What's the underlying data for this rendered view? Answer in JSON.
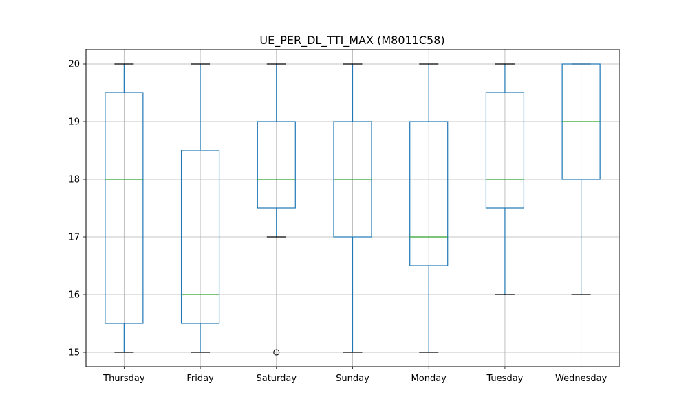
{
  "chart_data": {
    "type": "boxplot",
    "title": "UE_PER_DL_TTI_MAX (M8011C58)",
    "xlabel": "",
    "ylabel": "",
    "categories": [
      "Thursday",
      "Friday",
      "Saturday",
      "Sunday",
      "Monday",
      "Tuesday",
      "Wednesday"
    ],
    "boxes": [
      {
        "category": "Thursday",
        "whisker_low": 15,
        "q1": 15.5,
        "median": 18,
        "q3": 19.5,
        "whisker_high": 20,
        "outliers": []
      },
      {
        "category": "Friday",
        "whisker_low": 15,
        "q1": 15.5,
        "median": 16,
        "q3": 18.5,
        "whisker_high": 20,
        "outliers": []
      },
      {
        "category": "Saturday",
        "whisker_low": 17,
        "q1": 17.5,
        "median": 18,
        "q3": 19,
        "whisker_high": 20,
        "outliers": [
          15
        ]
      },
      {
        "category": "Sunday",
        "whisker_low": 15,
        "q1": 17,
        "median": 18,
        "q3": 19,
        "whisker_high": 20,
        "outliers": []
      },
      {
        "category": "Monday",
        "whisker_low": 15,
        "q1": 16.5,
        "median": 17,
        "q3": 19,
        "whisker_high": 20,
        "outliers": []
      },
      {
        "category": "Tuesday",
        "whisker_low": 16,
        "q1": 17.5,
        "median": 18,
        "q3": 19.5,
        "whisker_high": 20,
        "outliers": []
      },
      {
        "category": "Wednesday",
        "whisker_low": 16,
        "q1": 18,
        "median": 19,
        "q3": 20,
        "whisker_high": 20,
        "outliers": []
      }
    ],
    "yticks": [
      15,
      16,
      17,
      18,
      19,
      20
    ],
    "ylim": [
      14.75,
      20.25
    ],
    "grid": true,
    "colors": {
      "box": "#1f77b4",
      "median": "#2ca02c",
      "cap": "#000000",
      "grid": "#b0b0b0",
      "outlier": "#000000"
    }
  }
}
